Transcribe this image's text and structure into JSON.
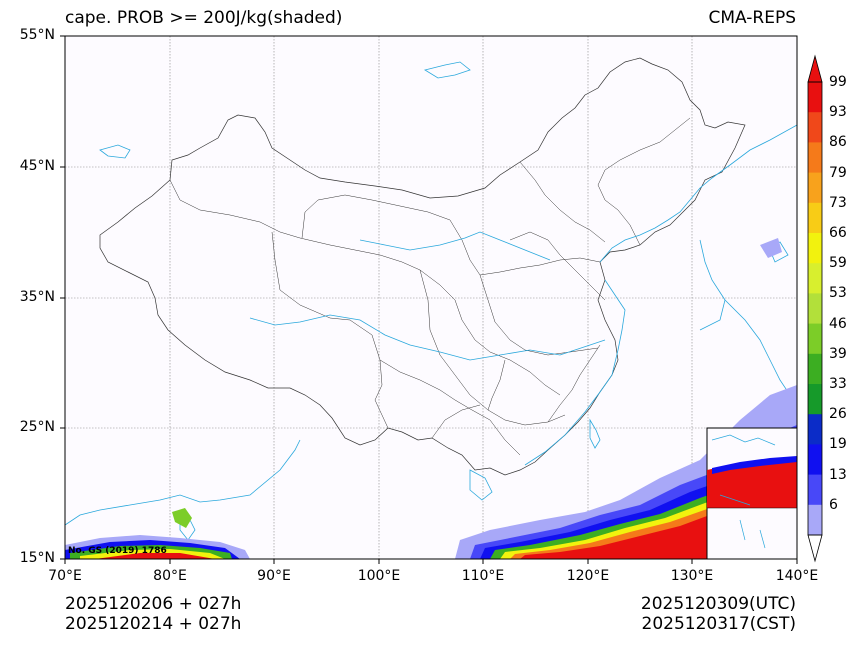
{
  "header": {
    "title_left": "cape. PROB >= 200J/kg(shaded)",
    "title_right": "CMA-REPS"
  },
  "axes": {
    "lat_labels": [
      "55°N",
      "45°N",
      "35°N",
      "25°N",
      "15°N"
    ],
    "lon_labels": [
      "70°E",
      "80°E",
      "90°E",
      "100°E",
      "110°E",
      "120°E",
      "130°E",
      "140°E"
    ]
  },
  "colorbar": {
    "levels": [
      "99",
      "93",
      "86",
      "79",
      "73",
      "66",
      "59",
      "53",
      "46",
      "39",
      "33",
      "26",
      "19",
      "13",
      "6"
    ],
    "colors": [
      "#e81010",
      "#f0481a",
      "#f57a1a",
      "#f8a21c",
      "#f8cc16",
      "#f2f20e",
      "#d8ef2e",
      "#b2e03a",
      "#7ccd28",
      "#3cae22",
      "#169a2a",
      "#0b2cc8",
      "#1010f0",
      "#4848f8",
      "#a8a8f8"
    ],
    "top_color": "#e81010",
    "bottom_color": "#ffffff"
  },
  "map_annotation": "No. GS (2019) 1786",
  "footer": {
    "init_time_utc": "2025120206  +  027h",
    "init_time_cst": "2025120214  +  027h",
    "valid_time_utc": "2025120309(UTC)",
    "valid_time_cst": "2025120317(CST)"
  }
}
